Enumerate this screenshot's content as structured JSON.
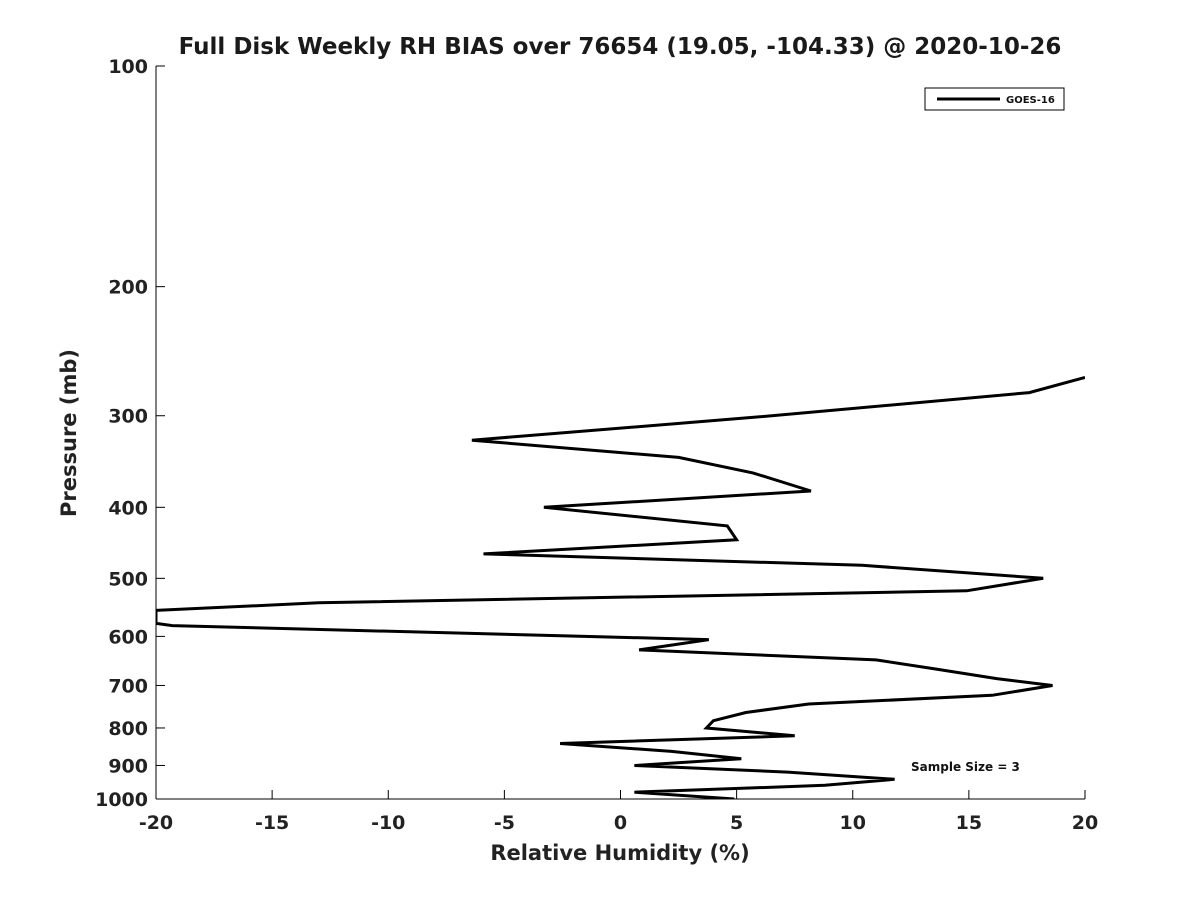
{
  "chart_data": {
    "type": "line",
    "title": "Full Disk Weekly RH BIAS over 76654 (19.05, -104.33) @ 2020-10-26",
    "xlabel": "Relative Humidity (%)",
    "ylabel": "Pressure (mb)",
    "xlim": [
      -20,
      20
    ],
    "ylim": [
      100,
      1000
    ],
    "yscale": "log",
    "yreversed": true,
    "xticks": [
      -20,
      -15,
      -10,
      -5,
      0,
      5,
      10,
      15,
      20
    ],
    "xtick_labels": [
      "-20",
      "-15",
      "-10",
      "-5",
      "0",
      "5",
      "10",
      "15",
      "20"
    ],
    "yticks": [
      100,
      200,
      300,
      400,
      500,
      600,
      700,
      800,
      900,
      1000
    ],
    "ytick_labels": [
      "100",
      "200",
      "300",
      "400",
      "500",
      "600",
      "700",
      "800",
      "900",
      "1000"
    ],
    "grid": false,
    "legend_position": "top-right",
    "annotation": "Sample Size = 3",
    "series": [
      {
        "name": "GOES-16",
        "color": "#000000",
        "points": [
          {
            "x": 20.0,
            "p": 266
          },
          {
            "x": 17.6,
            "p": 279
          },
          {
            "x": 6.0,
            "p": 301
          },
          {
            "x": -6.4,
            "p": 324
          },
          {
            "x": 2.5,
            "p": 342
          },
          {
            "x": 5.7,
            "p": 359
          },
          {
            "x": 8.2,
            "p": 380
          },
          {
            "x": -3.3,
            "p": 400
          },
          {
            "x": 4.6,
            "p": 424
          },
          {
            "x": 5.0,
            "p": 443
          },
          {
            "x": -5.9,
            "p": 463
          },
          {
            "x": 10.4,
            "p": 480
          },
          {
            "x": 18.2,
            "p": 500
          },
          {
            "x": 14.9,
            "p": 520
          },
          {
            "x": -13.0,
            "p": 540
          },
          {
            "x": -20.0,
            "p": 553
          },
          {
            "x": -20.0,
            "p": 576
          },
          {
            "x": -19.3,
            "p": 580
          },
          {
            "x": 3.8,
            "p": 606
          },
          {
            "x": 0.8,
            "p": 626
          },
          {
            "x": 11.0,
            "p": 646
          },
          {
            "x": 13.6,
            "p": 665
          },
          {
            "x": 16.2,
            "p": 685
          },
          {
            "x": 18.6,
            "p": 700
          },
          {
            "x": 16.0,
            "p": 722
          },
          {
            "x": 8.1,
            "p": 742
          },
          {
            "x": 5.4,
            "p": 762
          },
          {
            "x": 4.0,
            "p": 782
          },
          {
            "x": 3.7,
            "p": 800
          },
          {
            "x": 7.5,
            "p": 820
          },
          {
            "x": -2.6,
            "p": 840
          },
          {
            "x": 2.2,
            "p": 861
          },
          {
            "x": 5.2,
            "p": 881
          },
          {
            "x": 0.6,
            "p": 900
          },
          {
            "x": 7.2,
            "p": 919
          },
          {
            "x": 11.8,
            "p": 940
          },
          {
            "x": 8.8,
            "p": 958
          },
          {
            "x": 0.6,
            "p": 979
          },
          {
            "x": 4.9,
            "p": 1000
          }
        ]
      }
    ]
  }
}
